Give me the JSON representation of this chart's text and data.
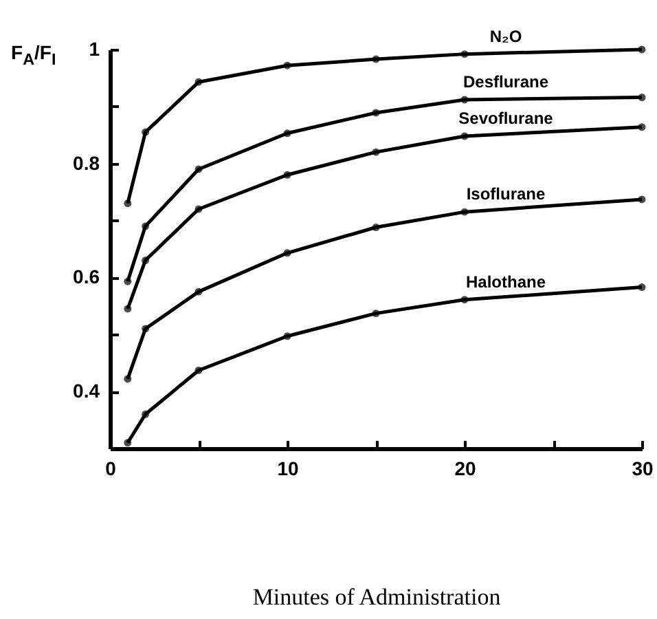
{
  "chart_data": {
    "type": "line",
    "xlabel": "Minutes of Administration",
    "ylabel": "F$_{A}$/F$_{I}$",
    "x": [
      1,
      2,
      5,
      10,
      15,
      20,
      30
    ],
    "series": [
      {
        "name": "N₂O",
        "color": "#000000",
        "values": [
          0.73,
          0.855,
          0.943,
          0.972,
          0.983,
          0.992,
          1.0
        ]
      },
      {
        "name": "Desflurane",
        "color": "#000000",
        "values": [
          0.593,
          0.69,
          0.79,
          0.853,
          0.889,
          0.912,
          0.916
        ]
      },
      {
        "name": "Sevoflurane",
        "color": "#000000",
        "values": [
          0.545,
          0.63,
          0.72,
          0.78,
          0.82,
          0.848,
          0.864
        ]
      },
      {
        "name": "Isoflurane",
        "color": "#000000",
        "values": [
          0.422,
          0.51,
          0.575,
          0.643,
          0.688,
          0.715,
          0.737
        ]
      },
      {
        "name": "Halothane",
        "color": "#000000",
        "values": [
          0.31,
          0.36,
          0.437,
          0.497,
          0.537,
          0.561,
          0.583
        ]
      }
    ],
    "xlim": [
      0,
      30
    ],
    "xticks": [
      0,
      {
        "value": 5,
        "label": null
      },
      10,
      {
        "value": 15,
        "label": null
      },
      20,
      {
        "value": 25,
        "label": null
      },
      30
    ],
    "ylim": [
      0.3,
      1
    ],
    "yticks": [
      0.4,
      {
        "value": 0.5,
        "label": null
      },
      0.6,
      {
        "value": 0.7,
        "label": null
      },
      0.8,
      {
        "value": 0.9,
        "label": null
      },
      1
    ],
    "grid": false,
    "legend": false,
    "marker": "circle"
  }
}
